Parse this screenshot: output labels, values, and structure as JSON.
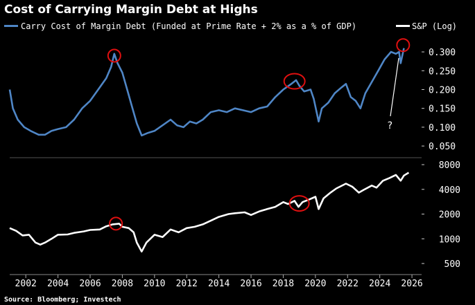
{
  "chart_data": {
    "type": "line",
    "title": "Cost of Carrying Margin Debt at Highs",
    "source": "Source: Bloomberg; Investech",
    "x_ticks": [
      "2002",
      "2004",
      "2006",
      "2008",
      "2010",
      "2012",
      "2014",
      "2016",
      "2018",
      "2020",
      "2022",
      "2024",
      "2026"
    ],
    "x_range": [
      2001.0,
      2026.6
    ],
    "annotation": "?",
    "panels": [
      {
        "name": "carry-cost",
        "legend": "Carry Cost of Margin Debt (Funded at Prime Rate + 2% as a % of GDP)",
        "color": "#4f86c6",
        "axis_scale": "linear",
        "ylim": [
          0.03,
          0.335
        ],
        "y_ticks": [
          0.05,
          0.1,
          0.15,
          0.2,
          0.25,
          0.3
        ],
        "y_tick_labels": [
          "0.050",
          "0.100",
          "0.150",
          "0.200",
          "0.250",
          "0.300"
        ],
        "points": [
          [
            2001.0,
            0.2
          ],
          [
            2001.2,
            0.15
          ],
          [
            2001.5,
            0.12
          ],
          [
            2001.9,
            0.1
          ],
          [
            2002.3,
            0.09
          ],
          [
            2002.8,
            0.08
          ],
          [
            2003.2,
            0.08
          ],
          [
            2003.6,
            0.09
          ],
          [
            2004.0,
            0.095
          ],
          [
            2004.5,
            0.1
          ],
          [
            2005.0,
            0.12
          ],
          [
            2005.5,
            0.15
          ],
          [
            2006.0,
            0.17
          ],
          [
            2006.5,
            0.2
          ],
          [
            2007.0,
            0.23
          ],
          [
            2007.3,
            0.26
          ],
          [
            2007.5,
            0.295
          ],
          [
            2007.7,
            0.27
          ],
          [
            2008.0,
            0.245
          ],
          [
            2008.3,
            0.2
          ],
          [
            2008.6,
            0.155
          ],
          [
            2008.9,
            0.11
          ],
          [
            2009.2,
            0.078
          ],
          [
            2009.6,
            0.085
          ],
          [
            2010.0,
            0.09
          ],
          [
            2010.5,
            0.105
          ],
          [
            2011.0,
            0.12
          ],
          [
            2011.4,
            0.105
          ],
          [
            2011.8,
            0.1
          ],
          [
            2012.2,
            0.115
          ],
          [
            2012.6,
            0.11
          ],
          [
            2013.0,
            0.12
          ],
          [
            2013.5,
            0.14
          ],
          [
            2014.0,
            0.145
          ],
          [
            2014.5,
            0.14
          ],
          [
            2015.0,
            0.15
          ],
          [
            2015.5,
            0.145
          ],
          [
            2016.0,
            0.14
          ],
          [
            2016.5,
            0.15
          ],
          [
            2017.0,
            0.155
          ],
          [
            2017.5,
            0.18
          ],
          [
            2018.0,
            0.2
          ],
          [
            2018.5,
            0.215
          ],
          [
            2018.8,
            0.225
          ],
          [
            2019.0,
            0.21
          ],
          [
            2019.3,
            0.195
          ],
          [
            2019.7,
            0.2
          ],
          [
            2019.9,
            0.175
          ],
          [
            2020.2,
            0.115
          ],
          [
            2020.4,
            0.15
          ],
          [
            2020.8,
            0.165
          ],
          [
            2021.2,
            0.19
          ],
          [
            2021.6,
            0.205
          ],
          [
            2021.9,
            0.215
          ],
          [
            2022.2,
            0.18
          ],
          [
            2022.5,
            0.17
          ],
          [
            2022.8,
            0.15
          ],
          [
            2023.1,
            0.19
          ],
          [
            2023.5,
            0.22
          ],
          [
            2023.9,
            0.25
          ],
          [
            2024.3,
            0.28
          ],
          [
            2024.7,
            0.3
          ],
          [
            2025.0,
            0.295
          ],
          [
            2025.2,
            0.3
          ],
          [
            2025.3,
            0.27
          ],
          [
            2025.5,
            0.31
          ]
        ]
      },
      {
        "name": "sp500",
        "legend": "S&P (Log)",
        "color": "#ffffff",
        "axis_scale": "log",
        "ylim": [
          420,
          9000
        ],
        "y_ticks": [
          500,
          1000,
          2000,
          4000,
          8000
        ],
        "y_tick_labels": [
          "500",
          "1000",
          "2000",
          "4000",
          "8000"
        ],
        "points": [
          [
            2001.0,
            1350
          ],
          [
            2001.4,
            1250
          ],
          [
            2001.8,
            1100
          ],
          [
            2002.2,
            1120
          ],
          [
            2002.6,
            900
          ],
          [
            2002.9,
            850
          ],
          [
            2003.2,
            900
          ],
          [
            2003.6,
            1000
          ],
          [
            2004.0,
            1120
          ],
          [
            2004.6,
            1130
          ],
          [
            2005.0,
            1180
          ],
          [
            2005.6,
            1230
          ],
          [
            2006.0,
            1280
          ],
          [
            2006.6,
            1300
          ],
          [
            2007.0,
            1420
          ],
          [
            2007.4,
            1500
          ],
          [
            2007.8,
            1530
          ],
          [
            2008.0,
            1400
          ],
          [
            2008.4,
            1350
          ],
          [
            2008.7,
            1200
          ],
          [
            2008.9,
            900
          ],
          [
            2009.2,
            700
          ],
          [
            2009.5,
            900
          ],
          [
            2010.0,
            1120
          ],
          [
            2010.5,
            1050
          ],
          [
            2011.0,
            1300
          ],
          [
            2011.5,
            1200
          ],
          [
            2012.0,
            1350
          ],
          [
            2012.5,
            1400
          ],
          [
            2013.0,
            1500
          ],
          [
            2013.6,
            1700
          ],
          [
            2014.0,
            1850
          ],
          [
            2014.6,
            2000
          ],
          [
            2015.0,
            2050
          ],
          [
            2015.6,
            2100
          ],
          [
            2016.0,
            1950
          ],
          [
            2016.5,
            2150
          ],
          [
            2017.0,
            2300
          ],
          [
            2017.5,
            2450
          ],
          [
            2018.0,
            2800
          ],
          [
            2018.3,
            2650
          ],
          [
            2018.7,
            2900
          ],
          [
            2018.95,
            2450
          ],
          [
            2019.2,
            2800
          ],
          [
            2019.6,
            3000
          ],
          [
            2020.0,
            3250
          ],
          [
            2020.2,
            2300
          ],
          [
            2020.5,
            3100
          ],
          [
            2020.9,
            3600
          ],
          [
            2021.3,
            4100
          ],
          [
            2021.9,
            4700
          ],
          [
            2022.3,
            4300
          ],
          [
            2022.7,
            3650
          ],
          [
            2023.0,
            3950
          ],
          [
            2023.5,
            4450
          ],
          [
            2023.8,
            4200
          ],
          [
            2024.2,
            5100
          ],
          [
            2024.6,
            5500
          ],
          [
            2025.0,
            6000
          ],
          [
            2025.3,
            5100
          ],
          [
            2025.5,
            5900
          ],
          [
            2025.8,
            6400
          ]
        ]
      }
    ],
    "highlights": [
      {
        "panel": "carry-cost",
        "x": 2007.5,
        "y": 0.29
      },
      {
        "panel": "carry-cost",
        "x": 2018.7,
        "y": 0.222
      },
      {
        "panel": "carry-cost",
        "x": 2025.45,
        "y": 0.318
      },
      {
        "panel": "sp500",
        "x": 2007.6,
        "y": 1530
      },
      {
        "panel": "sp500",
        "x": 2019.0,
        "y": 2700
      }
    ]
  }
}
